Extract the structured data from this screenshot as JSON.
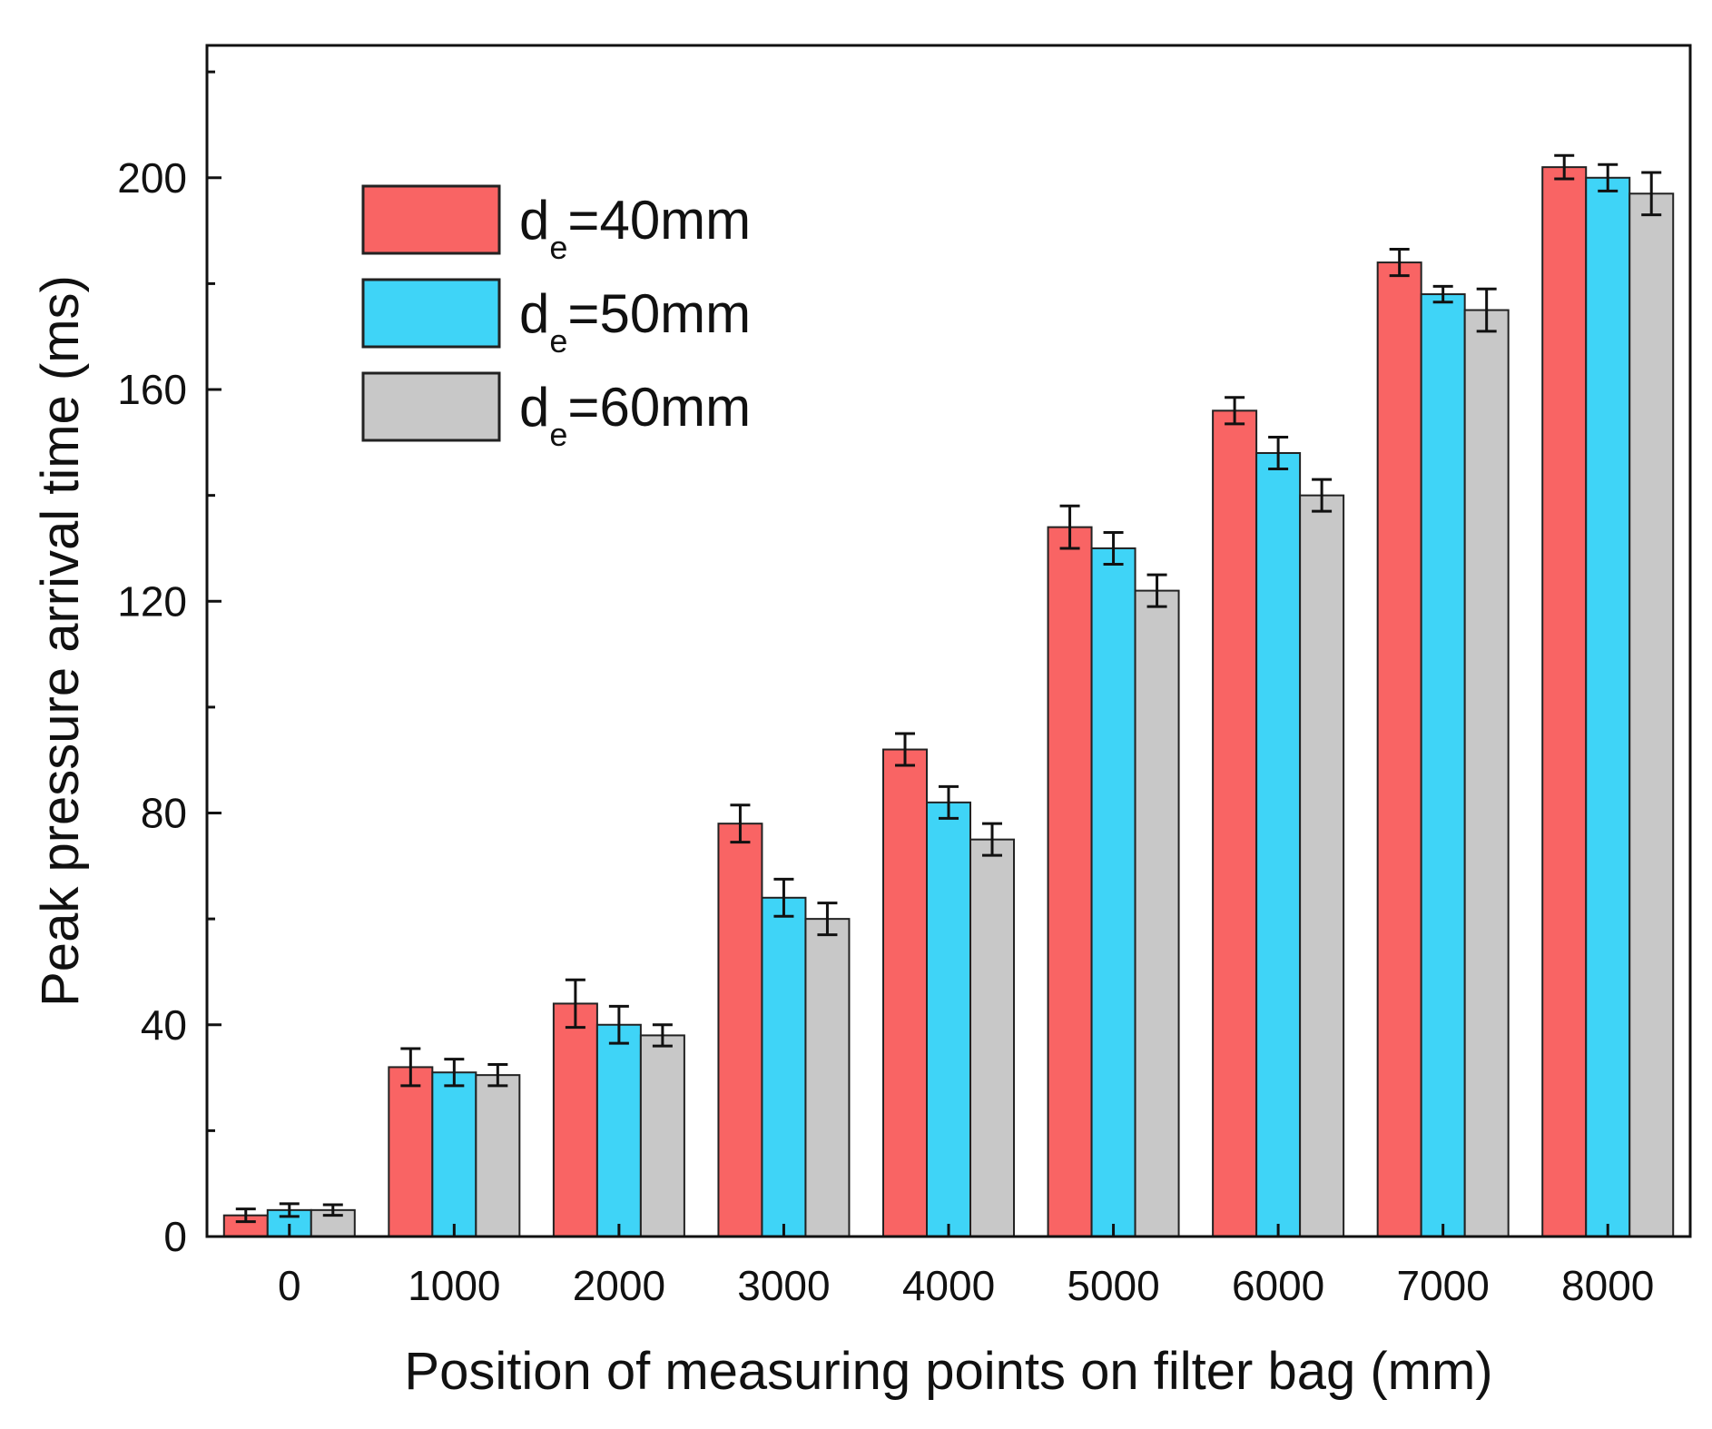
{
  "chart_data": {
    "type": "bar",
    "title": "",
    "xlabel": "Position of measuring points on filter bag (mm)",
    "ylabel": "Peak pressure arrival time (ms)",
    "ylim": [
      0,
      225
    ],
    "yticks": [
      0,
      40,
      80,
      120,
      160,
      200
    ],
    "categories": [
      "0",
      "1000",
      "2000",
      "3000",
      "4000",
      "5000",
      "6000",
      "7000",
      "8000"
    ],
    "legend_position": "top-left",
    "series": [
      {
        "name": "d_e=40mm",
        "legend_main": "d",
        "legend_sub": "e",
        "legend_rest": "=40mm",
        "color": "#f96464",
        "values": [
          4,
          32,
          44,
          78,
          92,
          134,
          156,
          184,
          202
        ],
        "errors": [
          1.2,
          3.5,
          4.5,
          3.5,
          3,
          4,
          2.5,
          2.5,
          2.2
        ]
      },
      {
        "name": "d_e=50mm",
        "legend_main": "d",
        "legend_sub": "e",
        "legend_rest": "=50mm",
        "color": "#3fd4f7",
        "values": [
          5,
          31,
          40,
          64,
          82,
          130,
          148,
          178,
          200
        ],
        "errors": [
          1.2,
          2.5,
          3.5,
          3.5,
          3,
          3,
          3,
          1.5,
          2.5
        ]
      },
      {
        "name": "d_e=60mm",
        "legend_main": "d",
        "legend_sub": "e",
        "legend_rest": "=60mm",
        "color": "#c8c8c8",
        "values": [
          5,
          30.5,
          38,
          60,
          75,
          122,
          140,
          175,
          197
        ],
        "errors": [
          1,
          2,
          2,
          3,
          3,
          3,
          3,
          4,
          4
        ]
      }
    ]
  }
}
